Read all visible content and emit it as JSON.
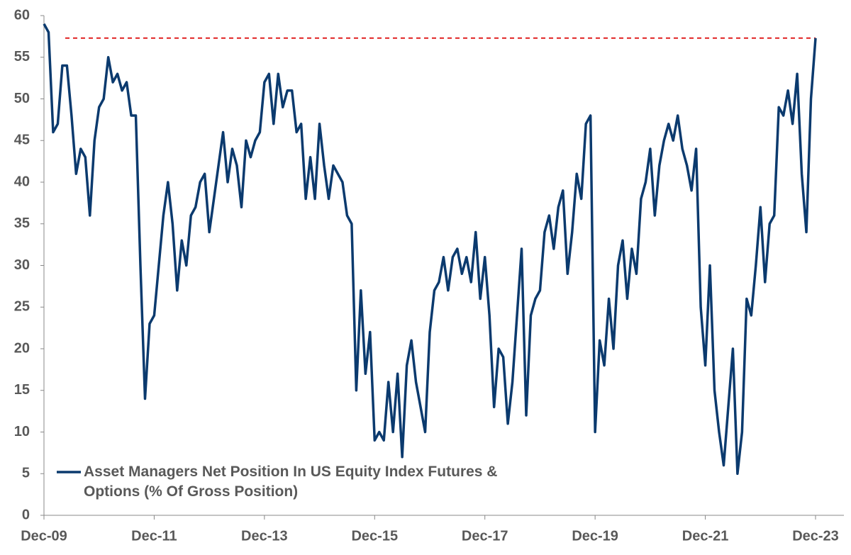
{
  "chart_data": {
    "type": "line",
    "categories": [
      "Dec-09",
      null,
      null,
      null,
      null,
      null,
      null,
      null,
      null,
      null,
      null,
      null,
      null,
      null,
      null,
      null,
      null,
      null,
      null,
      null,
      null,
      null,
      null,
      null,
      "Dec-11",
      null,
      null,
      null,
      null,
      null,
      null,
      null,
      null,
      null,
      null,
      null,
      null,
      null,
      null,
      null,
      null,
      null,
      null,
      null,
      null,
      null,
      null,
      null,
      "Dec-13",
      null,
      null,
      null,
      null,
      null,
      null,
      null,
      null,
      null,
      null,
      null,
      null,
      null,
      null,
      null,
      null,
      null,
      null,
      null,
      null,
      null,
      null,
      null,
      "Dec-15",
      null,
      null,
      null,
      null,
      null,
      null,
      null,
      null,
      null,
      null,
      null,
      null,
      null,
      null,
      null,
      null,
      null,
      null,
      null,
      null,
      null,
      null,
      null,
      "Dec-17",
      null,
      null,
      null,
      null,
      null,
      null,
      null,
      null,
      null,
      null,
      null,
      null,
      null,
      null,
      null,
      null,
      null,
      null,
      null,
      null,
      null,
      null,
      null,
      "Dec-19",
      null,
      null,
      null,
      null,
      null,
      null,
      null,
      null,
      null,
      null,
      null,
      null,
      null,
      null,
      null,
      null,
      null,
      null,
      null,
      null,
      null,
      null,
      null,
      "Dec-21",
      null,
      null,
      null,
      null,
      null,
      null,
      null,
      null,
      null,
      null,
      null,
      null,
      null,
      null,
      null,
      null,
      null,
      null,
      null,
      null,
      null,
      null,
      null,
      "Dec-23"
    ],
    "series": [
      {
        "name": "Asset Managers Net Position In US Equity Index Futures & Options (% Of Gross Position)",
        "color": "#0b3a6e",
        "values": [
          59,
          58,
          46,
          47,
          54,
          54,
          48,
          41,
          44,
          43,
          36,
          45,
          49,
          50,
          55,
          52,
          53,
          51,
          52,
          48,
          48,
          30,
          14,
          23,
          24,
          30,
          36,
          40,
          35,
          27,
          33,
          30,
          36,
          37,
          40,
          41,
          34,
          38,
          42,
          46,
          40,
          44,
          42,
          37,
          45,
          43,
          45,
          46,
          52,
          53,
          47,
          53,
          49,
          51,
          51,
          46,
          47,
          38,
          43,
          38,
          47,
          42,
          38,
          42,
          41,
          40,
          36,
          35,
          15,
          27,
          17,
          22,
          9,
          10,
          9,
          16,
          10,
          17,
          7,
          18,
          21,
          16,
          13,
          10,
          22,
          27,
          28,
          31,
          27,
          31,
          32,
          29,
          31,
          28,
          34,
          26,
          31,
          24,
          13,
          20,
          19,
          11,
          16,
          24,
          32,
          12,
          24,
          26,
          27,
          34,
          36,
          32,
          37,
          39,
          29,
          34,
          41,
          38,
          47,
          48,
          10,
          21,
          18,
          26,
          20,
          30,
          33,
          26,
          32,
          29,
          38,
          40,
          44,
          36,
          42,
          45,
          47,
          45,
          48,
          44,
          42,
          39,
          44,
          25,
          18,
          30,
          15,
          10,
          6,
          13,
          20,
          5,
          10,
          26,
          24,
          30,
          37,
          28,
          35,
          36,
          49,
          48,
          51,
          47,
          53,
          41,
          34,
          50,
          57.3
        ]
      }
    ],
    "ylim": [
      0,
      60
    ],
    "yticks": [
      0,
      5,
      10,
      15,
      20,
      25,
      30,
      35,
      40,
      45,
      50,
      55,
      60
    ],
    "reference_line": {
      "value": 57.3,
      "color": "#e02020"
    },
    "legend": "lower left",
    "grid": false
  }
}
